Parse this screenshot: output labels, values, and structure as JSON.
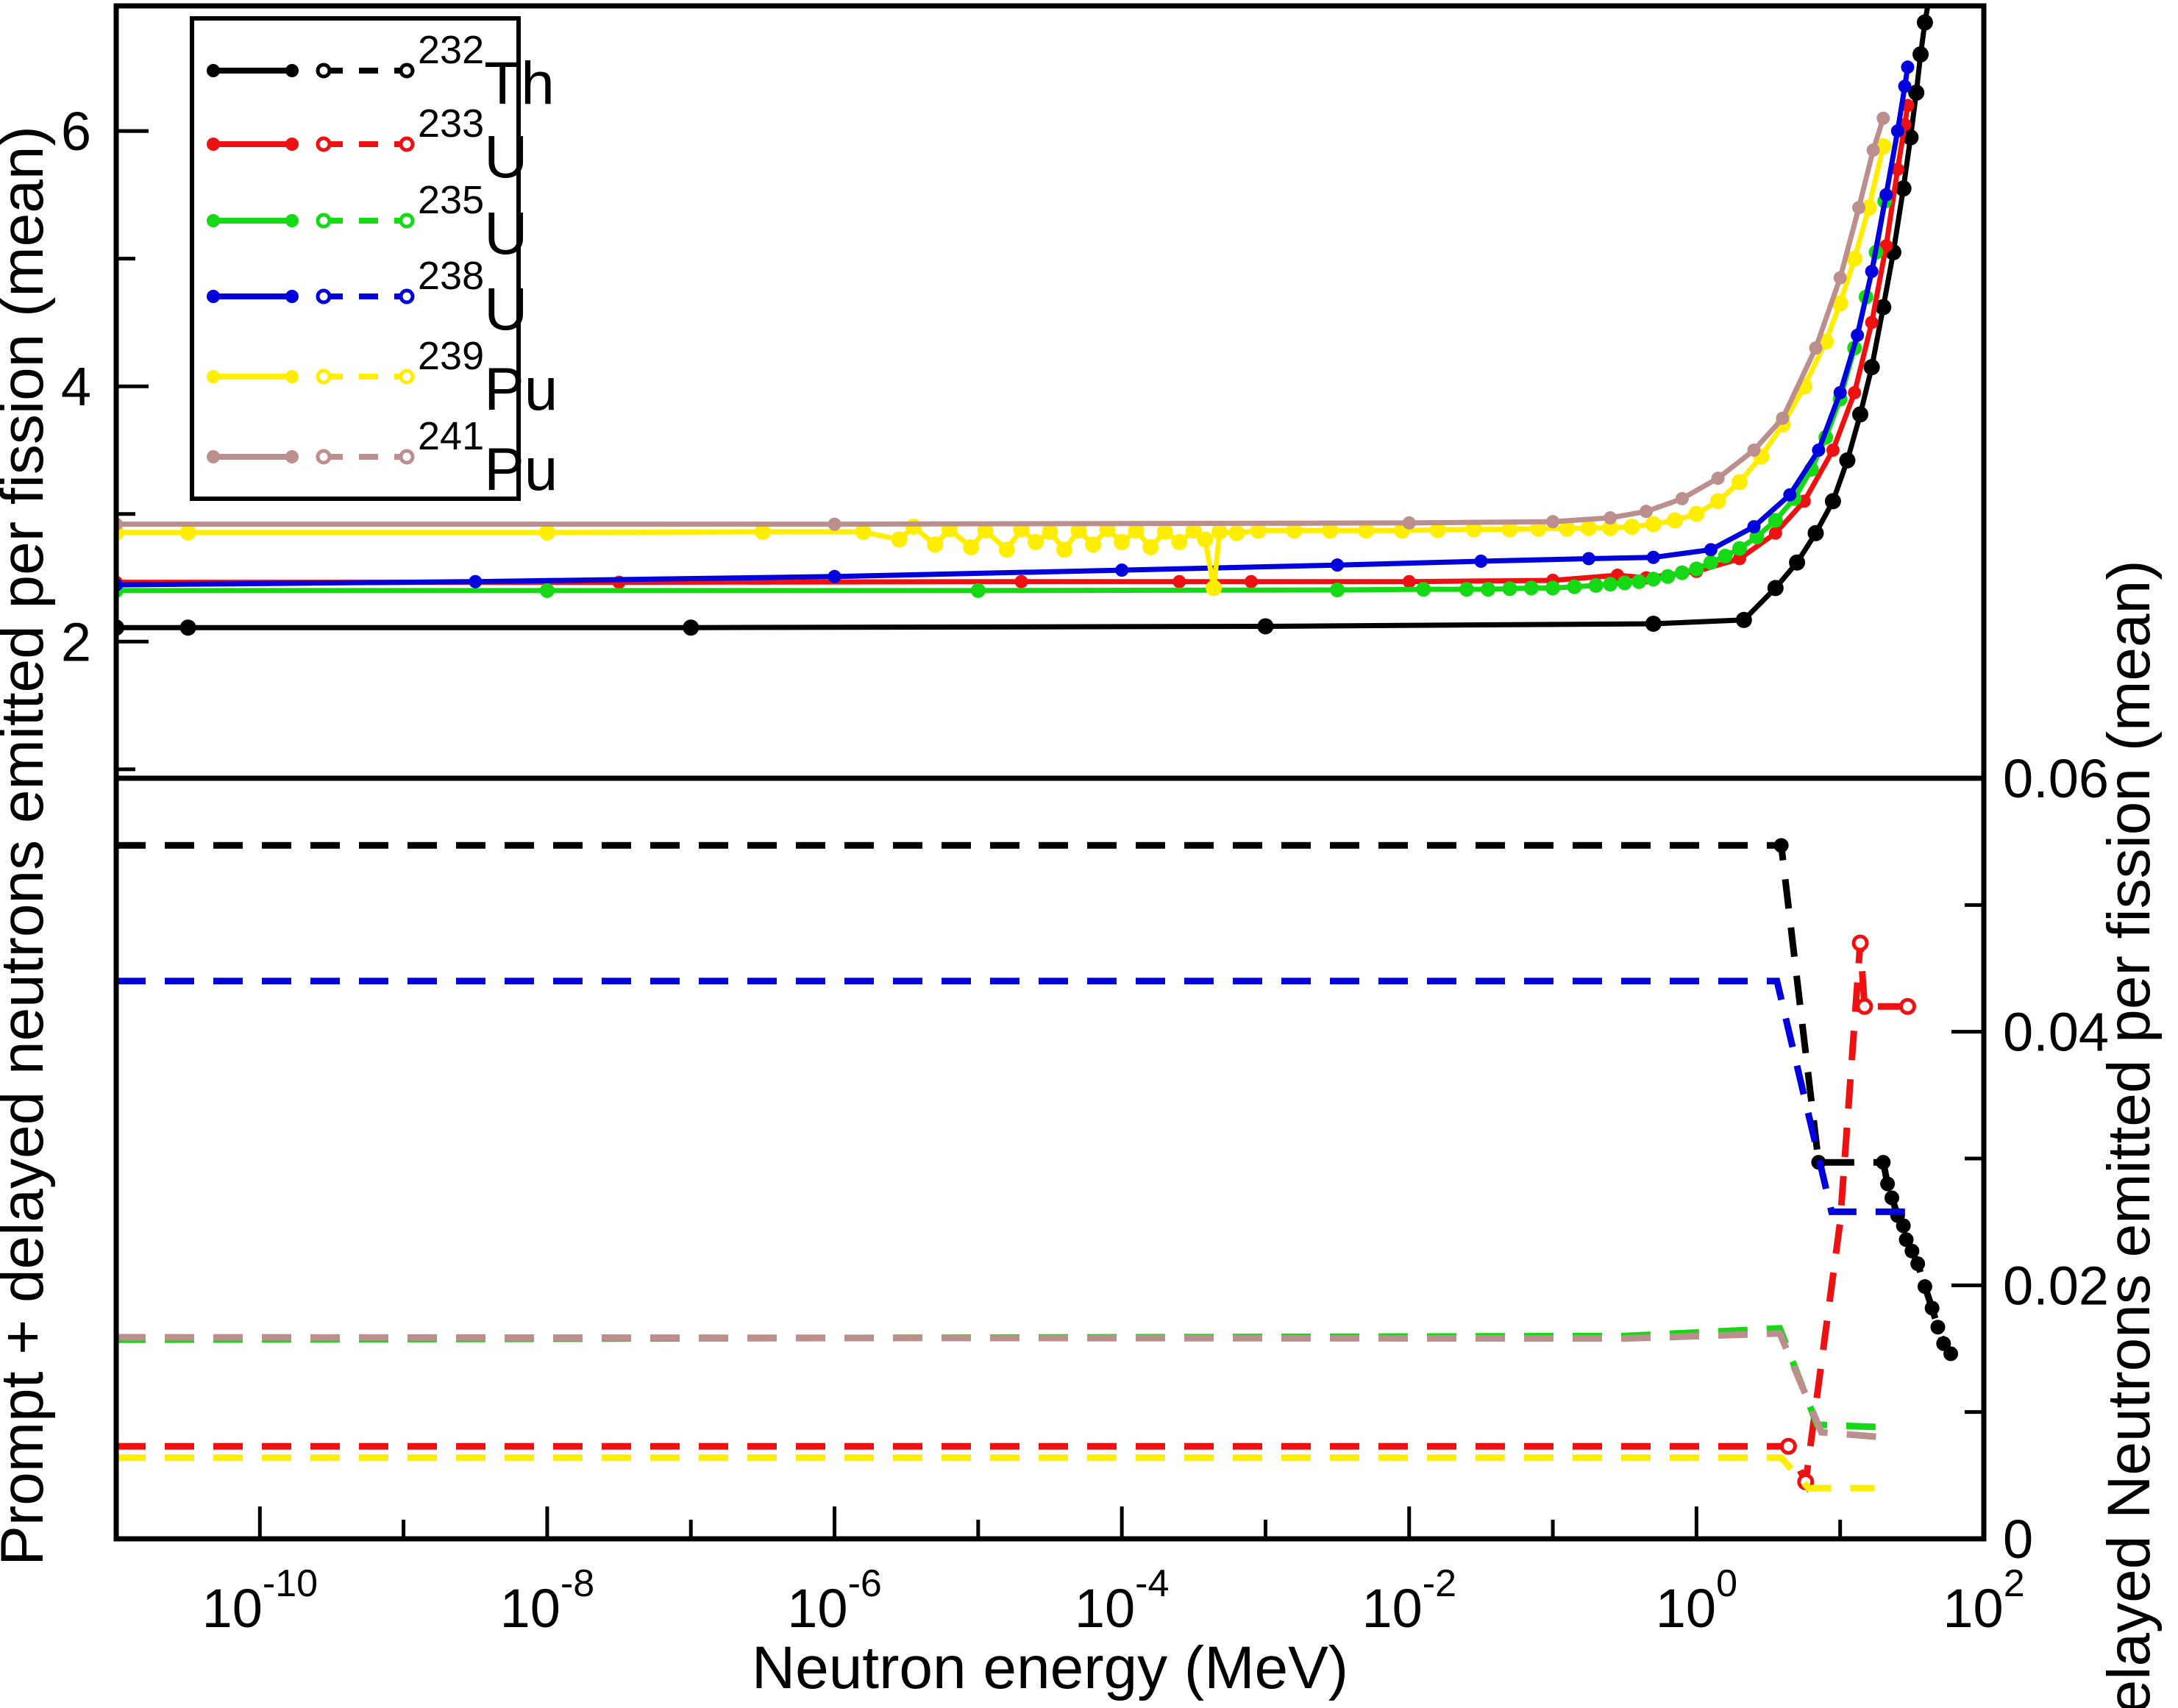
{
  "chart_data": {
    "type": "line",
    "title": "",
    "x_axis": {
      "label": "Neutron energy (MeV)",
      "scale": "log",
      "range_exponents": [
        -11,
        2
      ],
      "major_tick_exponents": [
        -10,
        -8,
        -6,
        -4,
        -2,
        0,
        2
      ],
      "minor_tick_exponents": [
        -11,
        -9,
        -7,
        -5,
        -3,
        -1,
        1
      ]
    },
    "y_axis_left": {
      "label": "Prompt + delayed neutrons emitted per fission (mean)",
      "range": [
        0.93,
        6.98
      ],
      "major_ticks": [
        {
          "value": 2,
          "label": "2"
        },
        {
          "value": 4,
          "label": "4"
        },
        {
          "value": 6,
          "label": "6"
        }
      ],
      "minor_ticks": [
        1,
        3,
        5
      ]
    },
    "y_axis_right": {
      "label": "Delayed Neutrons emitted per fission (mean)",
      "range": [
        0,
        0.06
      ],
      "major_ticks": [
        {
          "value": 0,
          "label": "0"
        },
        {
          "value": 0.02,
          "label": "0.02"
        },
        {
          "value": 0.04,
          "label": "0.04"
        },
        {
          "value": 0.06,
          "label": "0.06"
        }
      ],
      "minor_ticks": [
        0.01,
        0.03,
        0.05
      ]
    },
    "panels": {
      "top": {
        "content": "prompt + delayed neutrons",
        "line_style": "solid"
      },
      "bottom": {
        "content": "delayed neutrons",
        "line_style": "dashed"
      }
    },
    "legend": {
      "entries": [
        {
          "mass": "232",
          "element": "Th",
          "color": "#000000"
        },
        {
          "mass": "233",
          "element": "U",
          "color": "#ee1111"
        },
        {
          "mass": "235",
          "element": "U",
          "color": "#16d916"
        },
        {
          "mass": "238",
          "element": "U",
          "color": "#0000dd"
        },
        {
          "mass": "239",
          "element": "Pu",
          "color": "#ffee00"
        },
        {
          "mass": "241",
          "element": "Pu",
          "color": "#bc8f8f"
        }
      ]
    },
    "series_top": [
      {
        "isotope": "232Th",
        "color": "#000000",
        "marker_r": 11,
        "points": [
          [
            -11,
            2.11
          ],
          [
            -10.5,
            2.11
          ],
          [
            -7,
            2.11
          ],
          [
            -3,
            2.12
          ],
          [
            -0.3,
            2.14
          ],
          [
            0.33,
            2.17
          ],
          [
            0.55,
            2.42
          ],
          [
            0.7,
            2.62
          ],
          [
            0.83,
            2.85
          ],
          [
            0.95,
            3.1
          ],
          [
            1.05,
            3.42
          ],
          [
            1.14,
            3.78
          ],
          [
            1.22,
            4.15
          ],
          [
            1.3,
            4.62
          ],
          [
            1.37,
            5.05
          ],
          [
            1.44,
            5.55
          ],
          [
            1.49,
            5.95
          ],
          [
            1.53,
            6.3
          ],
          [
            1.56,
            6.6
          ],
          [
            1.59,
            6.85
          ],
          [
            1.62,
            7.05
          ]
        ]
      },
      {
        "isotope": "233U",
        "color": "#ee1111",
        "marker_r": 9,
        "points": [
          [
            -11,
            2.465
          ],
          [
            -7.5,
            2.465
          ],
          [
            -4.7,
            2.47
          ],
          [
            -3.6,
            2.47
          ],
          [
            -3.1,
            2.47
          ],
          [
            -2,
            2.47
          ],
          [
            -1,
            2.48
          ],
          [
            -0.55,
            2.52
          ],
          [
            -0.35,
            2.5
          ],
          [
            0,
            2.55
          ],
          [
            0.3,
            2.65
          ],
          [
            0.55,
            2.85
          ],
          [
            0.75,
            3.1
          ],
          [
            0.95,
            3.5
          ],
          [
            1.1,
            3.95
          ],
          [
            1.22,
            4.5
          ],
          [
            1.32,
            5.1
          ],
          [
            1.4,
            5.7
          ],
          [
            1.45,
            6.05
          ],
          [
            1.47,
            6.2
          ]
        ]
      },
      {
        "isotope": "235U",
        "color": "#16d916",
        "marker_r": 10,
        "points": [
          [
            -11,
            2.4
          ],
          [
            -8,
            2.4
          ],
          [
            -5,
            2.4
          ],
          [
            -2.5,
            2.405
          ],
          [
            -1.9,
            2.41
          ],
          [
            -1.6,
            2.41
          ],
          [
            -1.45,
            2.41
          ],
          [
            -1.3,
            2.415
          ],
          [
            -1.15,
            2.42
          ],
          [
            -1,
            2.42
          ],
          [
            -0.85,
            2.43
          ],
          [
            -0.7,
            2.44
          ],
          [
            -0.6,
            2.45
          ],
          [
            -0.5,
            2.46
          ],
          [
            -0.4,
            2.47
          ],
          [
            -0.3,
            2.49
          ],
          [
            -0.2,
            2.51
          ],
          [
            -0.1,
            2.54
          ],
          [
            0,
            2.57
          ],
          [
            0.1,
            2.62
          ],
          [
            0.2,
            2.67
          ],
          [
            0.3,
            2.73
          ],
          [
            0.42,
            2.82
          ],
          [
            0.55,
            2.95
          ],
          [
            0.68,
            3.12
          ],
          [
            0.8,
            3.35
          ],
          [
            0.9,
            3.6
          ],
          [
            1,
            3.9
          ],
          [
            1.1,
            4.3
          ],
          [
            1.18,
            4.7
          ],
          [
            1.25,
            5.05
          ],
          [
            1.31,
            5.45
          ]
        ]
      },
      {
        "isotope": "238U",
        "color": "#0000dd",
        "marker_r": 9,
        "points": [
          [
            -11,
            2.445
          ],
          [
            -8.5,
            2.47
          ],
          [
            -6,
            2.51
          ],
          [
            -4,
            2.56
          ],
          [
            -2.5,
            2.6
          ],
          [
            -1.5,
            2.63
          ],
          [
            -0.75,
            2.65
          ],
          [
            -0.3,
            2.66
          ],
          [
            0.1,
            2.72
          ],
          [
            0.4,
            2.9
          ],
          [
            0.65,
            3.15
          ],
          [
            0.85,
            3.5
          ],
          [
            1,
            3.95
          ],
          [
            1.12,
            4.4
          ],
          [
            1.22,
            4.9
          ],
          [
            1.32,
            5.5
          ],
          [
            1.4,
            6
          ],
          [
            1.45,
            6.35
          ],
          [
            1.47,
            6.5
          ]
        ]
      },
      {
        "isotope": "239Pu",
        "color": "#ffee00",
        "marker_r": 11,
        "points": [
          [
            -11,
            2.855
          ],
          [
            -10.5,
            2.855
          ],
          [
            -8,
            2.855
          ],
          [
            -6.5,
            2.86
          ],
          [
            -5.8,
            2.86
          ],
          [
            -5.55,
            2.8
          ],
          [
            -5.45,
            2.9
          ],
          [
            -5.3,
            2.76
          ],
          [
            -5.2,
            2.88
          ],
          [
            -5.05,
            2.74
          ],
          [
            -4.95,
            2.87
          ],
          [
            -4.8,
            2.72
          ],
          [
            -4.7,
            2.88
          ],
          [
            -4.6,
            2.78
          ],
          [
            -4.5,
            2.86
          ],
          [
            -4.4,
            2.72
          ],
          [
            -4.3,
            2.87
          ],
          [
            -4.2,
            2.76
          ],
          [
            -4.1,
            2.88
          ],
          [
            -4,
            2.78
          ],
          [
            -3.9,
            2.87
          ],
          [
            -3.8,
            2.74
          ],
          [
            -3.7,
            2.86
          ],
          [
            -3.6,
            2.78
          ],
          [
            -3.5,
            2.87
          ],
          [
            -3.42,
            2.8
          ],
          [
            -3.36,
            2.42
          ],
          [
            -3.32,
            2.86
          ],
          [
            -3.2,
            2.85
          ],
          [
            -3.05,
            2.87
          ],
          [
            -2.8,
            2.87
          ],
          [
            -2.55,
            2.87
          ],
          [
            -2.3,
            2.87
          ],
          [
            -2.05,
            2.87
          ],
          [
            -1.8,
            2.875
          ],
          [
            -1.55,
            2.88
          ],
          [
            -1.3,
            2.88
          ],
          [
            -1.1,
            2.885
          ],
          [
            -0.9,
            2.885
          ],
          [
            -0.75,
            2.89
          ],
          [
            -0.6,
            2.89
          ],
          [
            -0.45,
            2.9
          ],
          [
            -0.3,
            2.92
          ],
          [
            -0.15,
            2.95
          ],
          [
            0,
            3
          ],
          [
            0.15,
            3.1
          ],
          [
            0.3,
            3.25
          ],
          [
            0.45,
            3.45
          ],
          [
            0.6,
            3.7
          ],
          [
            0.75,
            4
          ],
          [
            0.9,
            4.35
          ],
          [
            1,
            4.65
          ],
          [
            1.1,
            5
          ],
          [
            1.2,
            5.4
          ],
          [
            1.3,
            5.88
          ]
        ]
      },
      {
        "isotope": "241Pu",
        "color": "#bc8f8f",
        "marker_r": 9,
        "points": [
          [
            -11,
            2.92
          ],
          [
            -6,
            2.92
          ],
          [
            -2,
            2.93
          ],
          [
            -1,
            2.94
          ],
          [
            -0.6,
            2.97
          ],
          [
            -0.35,
            3.02
          ],
          [
            -0.1,
            3.12
          ],
          [
            0.15,
            3.28
          ],
          [
            0.4,
            3.5
          ],
          [
            0.6,
            3.75
          ],
          [
            0.83,
            4.3
          ],
          [
            1,
            4.85
          ],
          [
            1.13,
            5.4
          ],
          [
            1.23,
            5.85
          ],
          [
            1.3,
            6.1
          ]
        ]
      }
    ],
    "series_bottom": [
      {
        "isotope": "232Th",
        "color": "#000000",
        "marker_r": 10,
        "marker_indices": [
          1,
          2,
          3,
          4,
          5,
          6,
          7,
          8,
          9,
          10,
          11,
          12,
          13,
          14,
          15
        ],
        "points": [
          [
            -11,
            0.0547
          ],
          [
            0.59,
            0.0547
          ],
          [
            0.85,
            0.0297
          ],
          [
            1.3,
            0.0297
          ],
          [
            1.33,
            0.028
          ],
          [
            1.36,
            0.0269
          ],
          [
            1.4,
            0.0255
          ],
          [
            1.44,
            0.0247
          ],
          [
            1.46,
            0.0236
          ],
          [
            1.5,
            0.0227
          ],
          [
            1.54,
            0.0217
          ],
          [
            1.59,
            0.0199
          ],
          [
            1.64,
            0.0182
          ],
          [
            1.68,
            0.0167
          ],
          [
            1.72,
            0.0154
          ],
          [
            1.77,
            0.0146
          ]
        ]
      },
      {
        "isotope": "233U",
        "color": "#ee1111",
        "marker_r": 9,
        "marker_style": "ring",
        "marker_indices": [
          1,
          2,
          4,
          5,
          6
        ],
        "points": [
          [
            -11,
            0.0073
          ],
          [
            0.64,
            0.0073
          ],
          [
            0.76,
            0.0045
          ],
          [
            1,
            0.025
          ],
          [
            1.14,
            0.047
          ],
          [
            1.17,
            0.042
          ],
          [
            1.47,
            0.042
          ]
        ]
      },
      {
        "isotope": "235U",
        "color": "#16d916",
        "marker_indices": [],
        "points": [
          [
            -11,
            0.0157
          ],
          [
            -0.5,
            0.016
          ],
          [
            0.58,
            0.0166
          ],
          [
            0.84,
            0.009
          ],
          [
            1.3,
            0.0088
          ]
        ]
      },
      {
        "isotope": "238U",
        "color": "#0000dd",
        "marker_indices": [],
        "points": [
          [
            -11,
            0.044
          ],
          [
            0.56,
            0.044
          ],
          [
            0.94,
            0.0258
          ],
          [
            1.46,
            0.0258
          ]
        ]
      },
      {
        "isotope": "239Pu",
        "color": "#ffee00",
        "marker_indices": [],
        "points": [
          [
            -11,
            0.0064
          ],
          [
            0.59,
            0.0064
          ],
          [
            0.78,
            0.004
          ],
          [
            1.24,
            0.004
          ]
        ]
      },
      {
        "isotope": "241Pu",
        "color": "#bc8f8f",
        "marker_indices": [],
        "points": [
          [
            -11,
            0.0159
          ],
          [
            -0.5,
            0.0158
          ],
          [
            0.58,
            0.0162
          ],
          [
            0.87,
            0.0084
          ],
          [
            1.31,
            0.008
          ]
        ]
      }
    ]
  }
}
